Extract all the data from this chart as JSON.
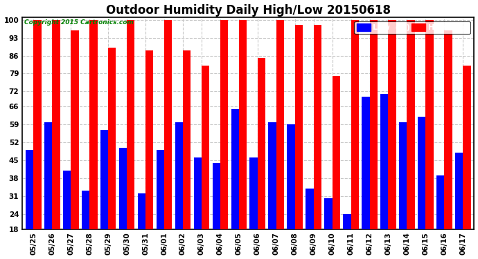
{
  "title": "Outdoor Humidity Daily High/Low 20150618",
  "copyright": "Copyright 2015 Cartronics.com",
  "dates": [
    "05/25",
    "05/26",
    "05/27",
    "05/28",
    "05/29",
    "05/30",
    "05/31",
    "06/01",
    "06/02",
    "06/03",
    "06/04",
    "06/05",
    "06/06",
    "06/07",
    "06/08",
    "06/09",
    "06/10",
    "06/11",
    "06/12",
    "06/13",
    "06/14",
    "06/15",
    "06/16",
    "06/17"
  ],
  "high": [
    100,
    100,
    96,
    100,
    89,
    100,
    88,
    100,
    88,
    82,
    100,
    100,
    85,
    100,
    98,
    98,
    78,
    100,
    100,
    100,
    100,
    100,
    96,
    82
  ],
  "low": [
    49,
    60,
    41,
    33,
    57,
    50,
    32,
    49,
    60,
    46,
    44,
    65,
    46,
    60,
    59,
    34,
    30,
    24,
    70,
    71,
    60,
    62,
    39,
    48
  ],
  "high_color": "#ff0000",
  "low_color": "#0000ff",
  "bg_color": "#ffffff",
  "grid_color": "#c8c8c8",
  "ymin": 18,
  "ymax": 100,
  "yticks": [
    18,
    24,
    31,
    38,
    45,
    52,
    59,
    66,
    72,
    79,
    86,
    93,
    100
  ],
  "bar_width": 0.42,
  "title_fontsize": 12,
  "tick_fontsize": 7.5,
  "legend_fontsize": 8
}
